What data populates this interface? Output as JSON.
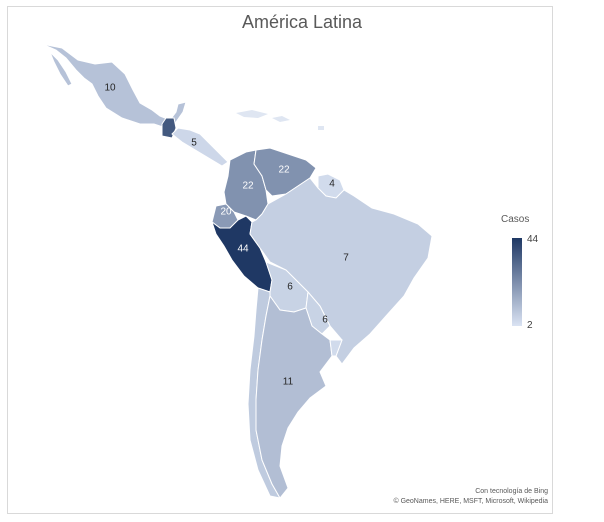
{
  "map": {
    "title": "América Latina",
    "legend": {
      "title": "Casos",
      "max": "44",
      "min": "2",
      "color_max": "#1f3864",
      "color_min": "#dae3f3"
    },
    "credits": {
      "line1": "Con tecnología de Bing",
      "line2": "© GeoNames, HERE, MSFT, Microsoft, Wikipedia"
    },
    "regions": [
      {
        "name": "Mexico",
        "value": 10,
        "label": "10"
      },
      {
        "name": "Guatemala",
        "value": 36,
        "label": ""
      },
      {
        "name": "Central America",
        "value": 5,
        "label": "5"
      },
      {
        "name": "Colombia",
        "value": 22,
        "label": "22"
      },
      {
        "name": "Venezuela",
        "value": 22,
        "label": "22"
      },
      {
        "name": "Guyana",
        "value": 4,
        "label": "4"
      },
      {
        "name": "Ecuador",
        "value": 20,
        "label": "20"
      },
      {
        "name": "Peru",
        "value": 44,
        "label": "44"
      },
      {
        "name": "Brazil",
        "value": 7,
        "label": "7"
      },
      {
        "name": "Bolivia",
        "value": 6,
        "label": "6"
      },
      {
        "name": "Paraguay",
        "value": 6,
        "label": "6"
      },
      {
        "name": "Argentina",
        "value": 11,
        "label": "11"
      },
      {
        "name": "Chile",
        "value": 8,
        "label": ""
      },
      {
        "name": "Uruguay",
        "value": 4,
        "label": ""
      }
    ]
  }
}
